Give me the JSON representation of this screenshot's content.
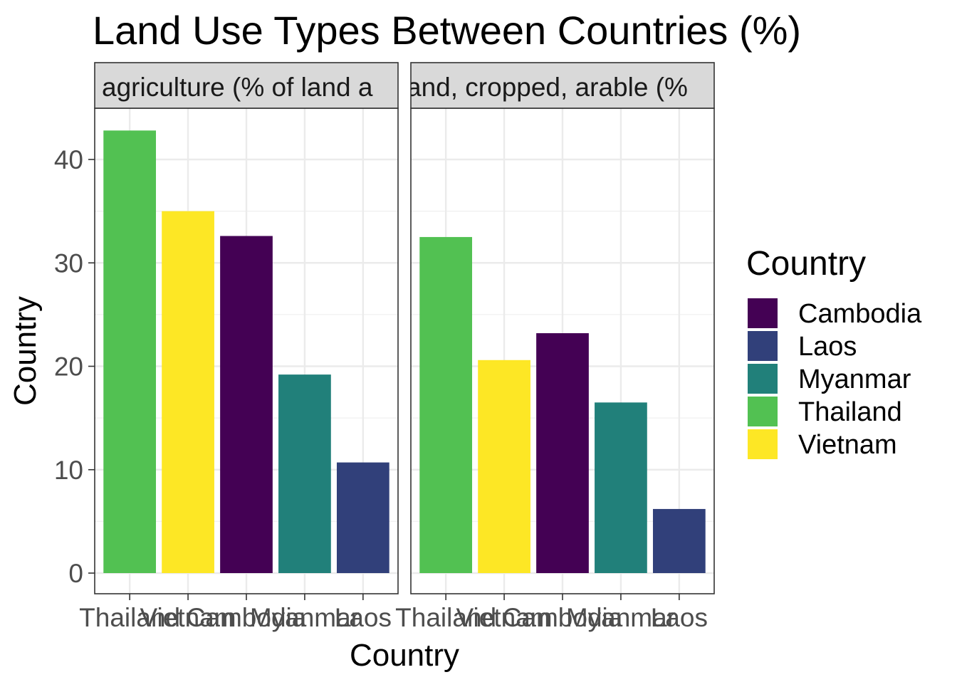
{
  "chart_data": {
    "type": "bar",
    "title": "Land Use Types Between Countries (%)",
    "xlabel": "Country",
    "ylabel": "Country",
    "ylim": [
      0,
      45
    ],
    "yticks": [
      0,
      10,
      20,
      30,
      40
    ],
    "grid": true,
    "legend": {
      "title": "Country",
      "position": "right",
      "entries": [
        {
          "label": "Cambodia",
          "color": "#440154"
        },
        {
          "label": "Laos",
          "color": "#31407a"
        },
        {
          "label": "Myanmar",
          "color": "#21807a"
        },
        {
          "label": "Thailand",
          "color": "#52c152"
        },
        {
          "label": "Vietnam",
          "color": "#fde725"
        }
      ]
    },
    "facets": [
      {
        "strip_label": "agriculture (% of land area)",
        "strip_visible": "agriculture (% of land a",
        "categories": [
          "Thailand",
          "Vietnam",
          "Cambodia",
          "Myanmar",
          "Laos"
        ],
        "values": [
          42.8,
          35.0,
          32.6,
          19.2,
          10.7
        ]
      },
      {
        "strip_label": "land, cropped, arable (% of land area)",
        "strip_visible": "and, cropped, arable (%",
        "categories": [
          "Thailand",
          "Vietnam",
          "Cambodia",
          "Myanmar",
          "Laos"
        ],
        "values": [
          32.5,
          20.6,
          23.2,
          16.5,
          6.2
        ]
      }
    ]
  }
}
